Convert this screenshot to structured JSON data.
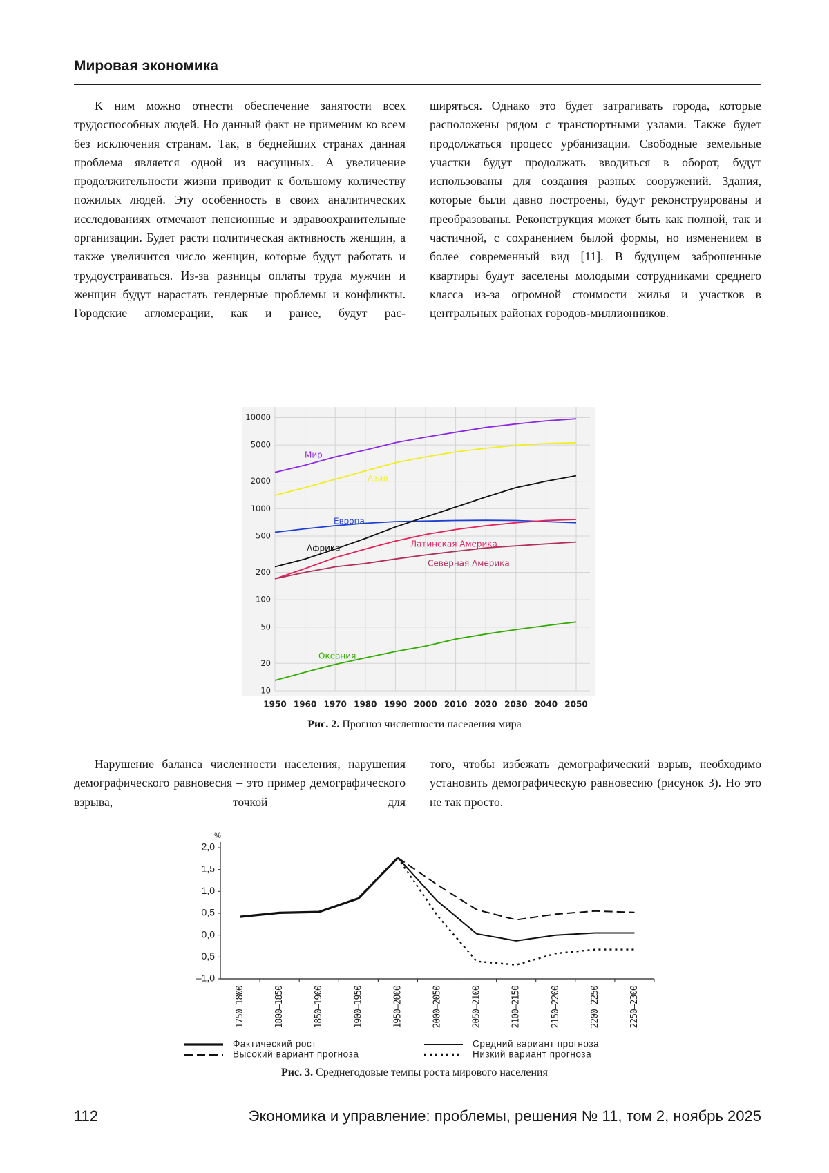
{
  "header": {
    "title": "Мировая экономика"
  },
  "text_top": {
    "left": "К ним можно отнести обеспечение занятости всех трудоспособных людей. Но данный факт не применим ко всем без исключения странам. Так, в беднейших странах данная проблема является одной из насущных. А увеличение продолжительности жизни приводит к большому количеству пожилых людей. Эту особенность в своих аналитических исследованиях отмечают пенсионные и здравоохранительные организации. Будет расти политическая активность женщин, а также увеличится число женщин, которые будут работать и трудоустраиваться. Из-за разницы оплаты труда мужчин и женщин будут нарастать гендерные проблемы и конфликты. Городские агломерации, как и ранее, будут рас-",
    "right": "ширяться. Однако это будет затрагивать города, которые расположены рядом с транспортными узлами. Также будет продолжаться процесс урбанизации. Свободные земельные участки будут продолжать вводиться в оборот, будут использованы для создания разных сооружений. Здания, которые были давно построены, будут реконструированы и преобразованы. Реконструкция может быть как полной, так и частичной, с сохранением былой формы, но изменением в более современный вид [11]. В будущем заброшенные квартиры будут заселены молодыми сотрудниками среднего класса из-за огромной стоимости жилья и участков в центральных районах городов-миллионников."
  },
  "text_middle": {
    "left": "Нарушение баланса численности населения, нарушения демографического равновесия – это пример демографического взрыва, точкой для",
    "right": "того, чтобы избежать демографический взрыв, необходимо установить демографическую равновесию (рисунок 3). Но это не так просто."
  },
  "chart_data": [
    {
      "type": "line",
      "log_y": true,
      "grid": true,
      "x": [
        1950,
        1960,
        1970,
        1980,
        1990,
        2000,
        2010,
        2020,
        2030,
        2040,
        2050
      ],
      "xlim": [
        1950,
        2050
      ],
      "xticks": [
        1950,
        1960,
        1970,
        1980,
        1990,
        2000,
        2010,
        2020,
        2030,
        2040,
        2050
      ],
      "ylim": [
        10,
        12000
      ],
      "yticks": [
        10,
        20,
        50,
        100,
        200,
        500,
        1000,
        2000,
        5000,
        10000
      ],
      "series": [
        {
          "name": "Мир",
          "color": "#8a2be2",
          "values": [
            2500,
            3000,
            3700,
            4400,
            5300,
            6100,
            6900,
            7800,
            8500,
            9200,
            9700
          ]
        },
        {
          "name": "Азия",
          "color": "#eeee22",
          "values": [
            1400,
            1700,
            2100,
            2600,
            3200,
            3700,
            4200,
            4600,
            4950,
            5200,
            5300
          ]
        },
        {
          "name": "Европа",
          "color": "#1f3fd0",
          "values": [
            550,
            600,
            650,
            690,
            720,
            730,
            740,
            745,
            740,
            720,
            700
          ]
        },
        {
          "name": "Африка",
          "color": "#111111",
          "values": [
            230,
            280,
            360,
            470,
            630,
            810,
            1040,
            1340,
            1700,
            2000,
            2300
          ]
        },
        {
          "name": "Латинская Америка",
          "color": "#e0245e",
          "values": [
            170,
            220,
            290,
            360,
            440,
            520,
            590,
            650,
            700,
            740,
            760
          ]
        },
        {
          "name": "Северная Америка",
          "color": "#b0305a",
          "values": [
            170,
            200,
            230,
            250,
            280,
            310,
            340,
            370,
            390,
            410,
            430
          ]
        },
        {
          "name": "Океания",
          "color": "#33aa00",
          "values": [
            13,
            16,
            19.5,
            23,
            27,
            31,
            37,
            42,
            47,
            52,
            57
          ]
        }
      ],
      "caption_label": "Рис. 2.",
      "caption": "Прогноз численности населения мира"
    },
    {
      "type": "line",
      "y_label": "%",
      "categories": [
        "1750–1800",
        "1800–1850",
        "1850–1900",
        "1900–1950",
        "1950–2000",
        "2000–2050",
        "2050–2100",
        "2100–2150",
        "2150–2200",
        "2200–2250",
        "2250–2300"
      ],
      "ylim": [
        -1,
        2
      ],
      "yticks": [
        {
          "value": 2,
          "label": "2,0"
        },
        {
          "value": 1.5,
          "label": "1,5"
        },
        {
          "value": 1,
          "label": "1,0"
        },
        {
          "value": 0.5,
          "label": "0,5"
        },
        {
          "value": 0,
          "label": "0,0"
        },
        {
          "value": -0.5,
          "label": "–0,5"
        },
        {
          "value": -1,
          "label": "–1,0"
        }
      ],
      "series": [
        {
          "name": "Фактический рост",
          "color": "#111111",
          "style": "thick",
          "values": [
            0.42,
            0.51,
            0.53,
            0.84,
            1.77,
            null,
            null,
            null,
            null,
            null,
            null
          ]
        },
        {
          "name": "Средний вариант прогноза",
          "color": "#111111",
          "style": "solid",
          "values": [
            null,
            null,
            null,
            null,
            1.77,
            0.78,
            0.03,
            -0.13,
            0.0,
            0.05,
            0.05
          ]
        },
        {
          "name": "Высокий вариант прогноза",
          "color": "#111111",
          "style": "dashed",
          "values": [
            null,
            null,
            null,
            null,
            1.77,
            1.15,
            0.58,
            0.35,
            0.48,
            0.55,
            0.52
          ]
        },
        {
          "name": "Низкий вариант прогноза",
          "color": "#111111",
          "style": "dotted",
          "values": [
            null,
            null,
            null,
            null,
            1.77,
            0.45,
            -0.6,
            -0.68,
            -0.42,
            -0.33,
            -0.33
          ]
        }
      ],
      "caption_label": "Рис. 3.",
      "caption": "Среднегодовые темпы роста мирового населения"
    }
  ],
  "footer": {
    "page": "112",
    "journal": "Экономика и управление: проблемы, решения № 11, том 2, ноябрь 2025"
  }
}
